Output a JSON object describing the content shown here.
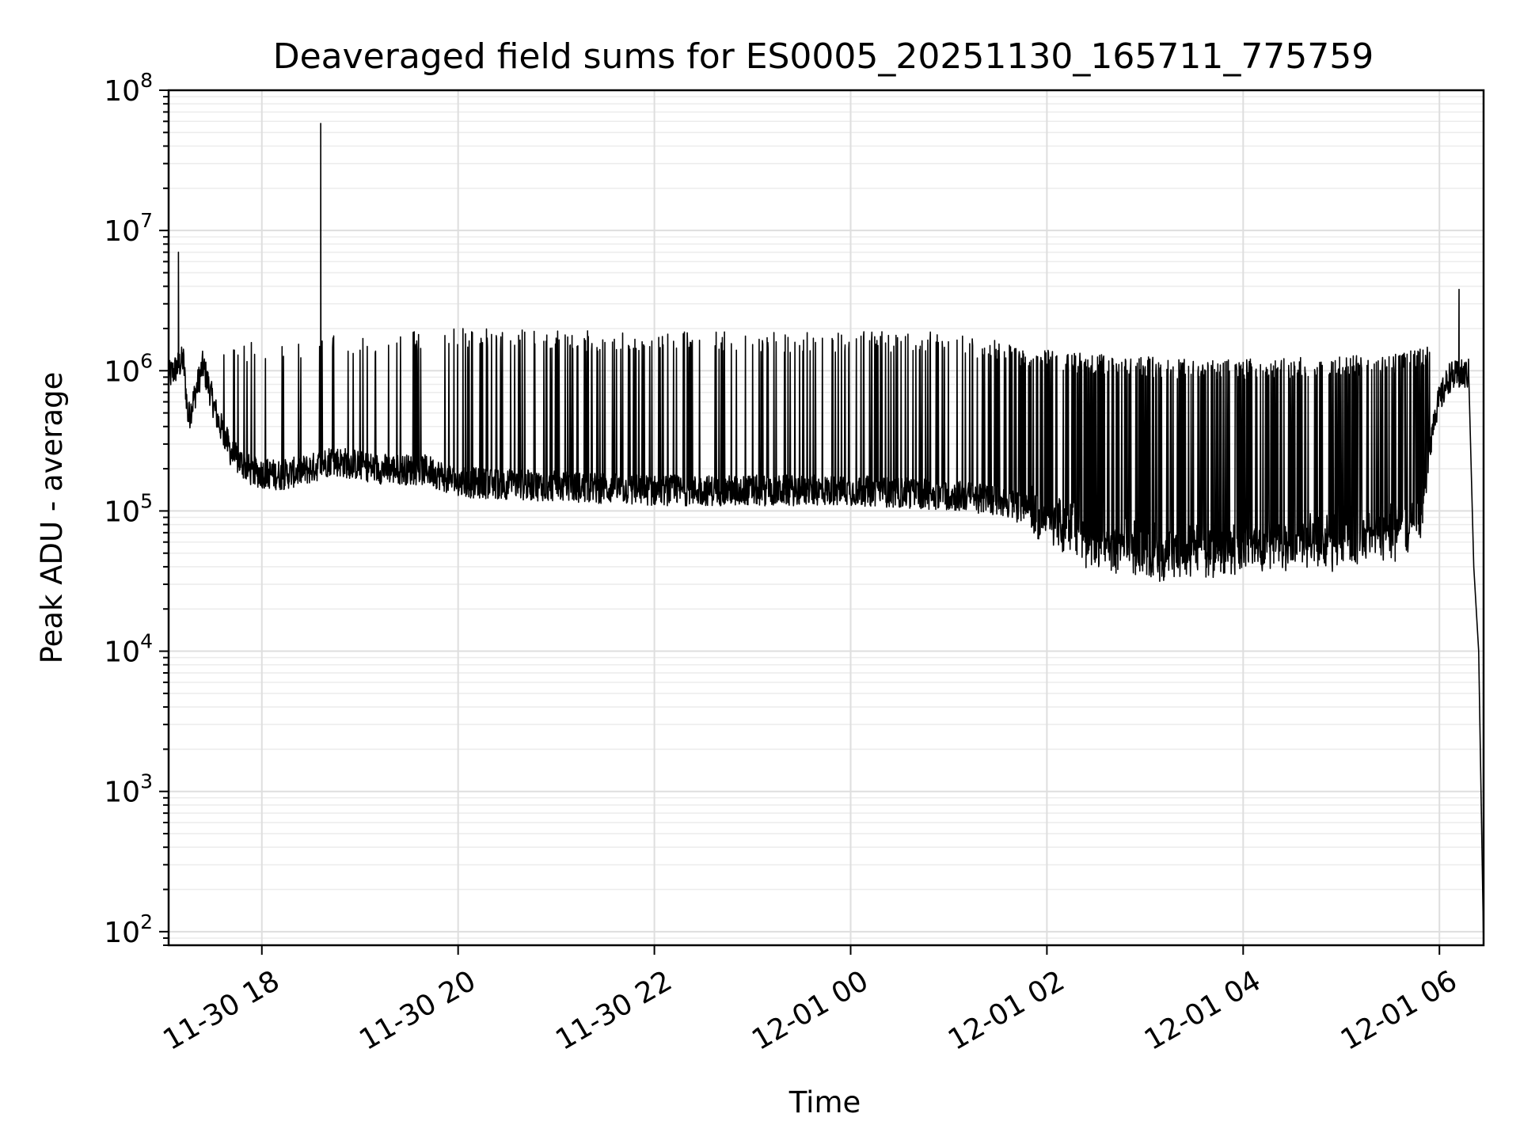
{
  "chart_data": {
    "type": "line",
    "title": "Deaveraged field sums for ES0005_20251130_165711_775759",
    "xlabel": "Time",
    "ylabel": "Peak ADU - average",
    "yscale": "log",
    "ylim": [
      80,
      100000000
    ],
    "xlim_hours": [
      -6.95,
      6.45
    ],
    "xlim_desc": "hours relative to 12-01 00:00",
    "grid": true,
    "x_ticks": [
      {
        "label": "11-30 18",
        "hour": -6
      },
      {
        "label": "11-30 20",
        "hour": -4
      },
      {
        "label": "11-30 22",
        "hour": -2
      },
      {
        "label": "12-01 00",
        "hour": 0
      },
      {
        "label": "12-01 02",
        "hour": 2
      },
      {
        "label": "12-01 04",
        "hour": 4
      },
      {
        "label": "12-01 06",
        "hour": 6
      }
    ],
    "y_ticks": [
      {
        "base": "10",
        "exp": "2",
        "value": 100
      },
      {
        "base": "10",
        "exp": "3",
        "value": 1000
      },
      {
        "base": "10",
        "exp": "4",
        "value": 10000
      },
      {
        "base": "10",
        "exp": "5",
        "value": 100000
      },
      {
        "base": "10",
        "exp": "6",
        "value": 1000000
      },
      {
        "base": "10",
        "exp": "7",
        "value": 10000000
      },
      {
        "base": "10",
        "exp": "8",
        "value": 100000000
      }
    ],
    "series": [
      {
        "name": "Peak ADU - average",
        "color": "#000000",
        "baseline_points": [
          [
            -6.95,
            900000
          ],
          [
            -6.8,
            1200000
          ],
          [
            -6.75,
            450000
          ],
          [
            -6.6,
            1100000
          ],
          [
            -6.45,
            450000
          ],
          [
            -6.3,
            250000
          ],
          [
            -6.1,
            190000
          ],
          [
            -5.8,
            180000
          ],
          [
            -5.5,
            200000
          ],
          [
            -5.3,
            230000
          ],
          [
            -4.8,
            200000
          ],
          [
            -4.3,
            195000
          ],
          [
            -4.0,
            160000
          ],
          [
            -3.0,
            150000
          ],
          [
            -2.0,
            140000
          ],
          [
            -1.0,
            140000
          ],
          [
            0.0,
            140000
          ],
          [
            1.0,
            130000
          ],
          [
            1.5,
            120000
          ],
          [
            2.0,
            90000
          ],
          [
            2.5,
            60000
          ],
          [
            3.0,
            50000
          ],
          [
            4.0,
            55000
          ],
          [
            5.0,
            60000
          ],
          [
            5.8,
            80000
          ],
          [
            5.95,
            500000
          ],
          [
            6.1,
            900000
          ],
          [
            6.3,
            950000
          ],
          [
            6.35,
            40000
          ],
          [
            6.4,
            10000
          ],
          [
            6.45,
            80
          ]
        ],
        "spikes": [
          {
            "hour": -6.85,
            "value": 7000000
          },
          {
            "hour": -5.4,
            "value": 58000000
          },
          {
            "hour": 6.2,
            "value": 3800000
          }
        ],
        "burst_ceiling": [
          [
            -6.4,
            1600000
          ],
          [
            -4.0,
            2000000
          ],
          [
            -2.0,
            1900000
          ],
          [
            1.0,
            1900000
          ],
          [
            2.0,
            1400000
          ],
          [
            3.5,
            1200000
          ],
          [
            5.5,
            1300000
          ],
          [
            5.9,
            1500000
          ]
        ]
      }
    ]
  }
}
